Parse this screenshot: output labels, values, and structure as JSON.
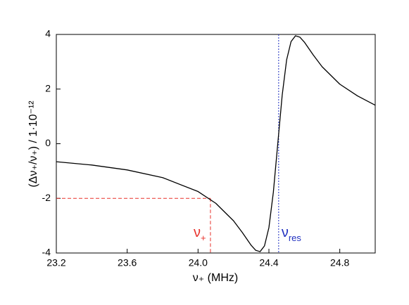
{
  "chart_data": {
    "type": "line",
    "xlabel": "ν₊ (MHz)",
    "ylabel": "(Δν₊/ν₊)  / 1·10⁻¹²",
    "x": [
      23.2,
      23.4,
      23.6,
      23.8,
      24.0,
      24.1,
      24.2,
      24.25,
      24.3,
      24.325,
      24.35,
      24.375,
      24.4,
      24.425,
      24.45,
      24.475,
      24.5,
      24.525,
      24.55,
      24.575,
      24.6,
      24.65,
      24.7,
      24.8,
      24.9,
      25.0
    ],
    "series": [
      {
        "color": "#000000",
        "values": [
          -0.66,
          -0.78,
          -0.96,
          -1.24,
          -1.75,
          -2.18,
          -2.82,
          -3.25,
          -3.72,
          -3.9,
          -3.95,
          -3.74,
          -3.07,
          -1.78,
          0,
          1.78,
          3.07,
          3.74,
          3.95,
          3.9,
          3.72,
          3.25,
          2.82,
          2.18,
          1.75,
          1.41
        ]
      }
    ],
    "xlim": [
      23.2,
      25.0
    ],
    "ylim": [
      -4,
      4
    ],
    "xticks": [
      23.2,
      23.6,
      {
        "value": 24.0,
        "label": "24.0"
      },
      24.4,
      24.8
    ],
    "yticks": [
      -4,
      -2,
      0,
      2,
      4
    ],
    "markers": [
      {
        "x": 24.07,
        "y": -2,
        "color": "#e8302a",
        "style": "dashed",
        "text": "ν",
        "subscript": "+"
      },
      {
        "x": 24.455,
        "color": "#2030c0",
        "style": "dotted",
        "text": "ν",
        "subscript": "res"
      }
    ]
  }
}
